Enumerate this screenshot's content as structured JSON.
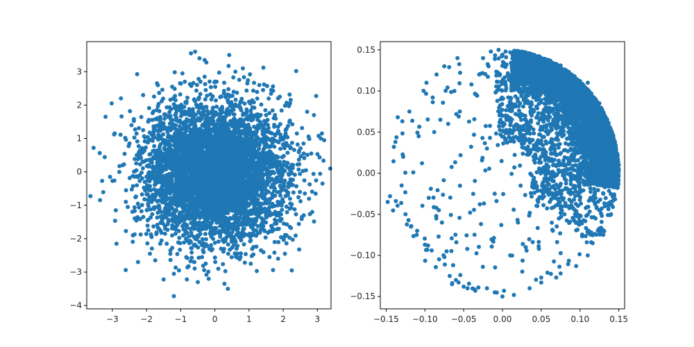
{
  "chart_data": [
    {
      "type": "scatter",
      "title": "",
      "xlabel": "",
      "ylabel": "",
      "xlim": [
        -3.75,
        3.4
      ],
      "ylim": [
        -4.1,
        3.9
      ],
      "xticks": [
        -3,
        -2,
        -1,
        0,
        1,
        2,
        3
      ],
      "yticks": [
        -4,
        -3,
        -2,
        -1,
        0,
        1,
        2,
        3
      ],
      "xtick_labels": [
        "−3",
        "−2",
        "−1",
        "0",
        "1",
        "2",
        "3"
      ],
      "ytick_labels": [
        "−4",
        "−3",
        "−2",
        "−1",
        "0",
        "1",
        "2",
        "3"
      ],
      "grid": false,
      "legend": "none",
      "color": "#1f77b4",
      "distribution": "2-D standard normal cloud centred at (0, 0), ~5000 points",
      "points": [
        [
          -3.55,
          0.72
        ],
        [
          -3.3,
          -0.27
        ],
        [
          -3.02,
          2.05
        ],
        [
          -2.95,
          1.12
        ],
        [
          -2.9,
          -1.15
        ],
        [
          -2.88,
          -2.15
        ],
        [
          -2.75,
          2.2
        ],
        [
          -3.2,
          1.65
        ],
        [
          -2.55,
          -1.05
        ],
        [
          -2.4,
          -1.9
        ],
        [
          -2.25,
          -2.7
        ],
        [
          -2.1,
          2.3
        ],
        [
          -1.9,
          -2.45
        ],
        [
          -1.5,
          -3.22
        ],
        [
          -1.25,
          2.55
        ],
        [
          -1.2,
          -3.05
        ],
        [
          -0.88,
          2.7
        ],
        [
          -0.82,
          -3.22
        ],
        [
          -0.7,
          3.55
        ],
        [
          -0.58,
          3.6
        ],
        [
          -0.45,
          3.4
        ],
        [
          -0.3,
          3.35
        ],
        [
          -0.5,
          -3.3
        ],
        [
          -0.18,
          -3.2
        ],
        [
          -1.2,
          -3.72
        ],
        [
          -0.95,
          2.95
        ],
        [
          -1.05,
          -2.95
        ],
        [
          0.1,
          -2.9
        ],
        [
          0.28,
          -3.35
        ],
        [
          0.38,
          -3.5
        ],
        [
          0.42,
          3.5
        ],
        [
          0.6,
          3.0
        ],
        [
          0.82,
          3.1
        ],
        [
          0.95,
          2.65
        ],
        [
          1.42,
          3.12
        ],
        [
          1.6,
          -2.55
        ],
        [
          1.85,
          -2.6
        ],
        [
          2.05,
          -2.45
        ],
        [
          2.25,
          -2.95
        ],
        [
          2.38,
          3.02
        ],
        [
          2.55,
          -1.35
        ],
        [
          2.7,
          1.8
        ],
        [
          2.9,
          1.7
        ],
        [
          3.1,
          1.0
        ],
        [
          3.2,
          0.95
        ],
        [
          2.95,
          -0.65
        ],
        [
          3.15,
          -0.35
        ],
        [
          2.85,
          -1.2
        ],
        [
          2.6,
          0.55
        ],
        [
          2.4,
          1.15
        ],
        [
          2.2,
          2.05
        ],
        [
          1.9,
          2.25
        ],
        [
          1.65,
          2.45
        ],
        [
          1.3,
          2.6
        ],
        [
          2.1,
          -1.9
        ],
        [
          1.75,
          -2.1
        ],
        [
          1.35,
          -2.35
        ],
        [
          1.05,
          -2.75
        ],
        [
          0.75,
          -2.55
        ],
        [
          -1.7,
          1.85
        ],
        [
          -2.1,
          1.25
        ],
        [
          -2.5,
          0.85
        ],
        [
          -2.7,
          0.2
        ],
        [
          -2.6,
          -0.55
        ],
        [
          -2.3,
          -1.4
        ],
        [
          -1.95,
          -1.75
        ],
        [
          -1.6,
          -2.15
        ],
        [
          -1.3,
          -2.35
        ],
        [
          -0.6,
          -2.7
        ],
        [
          0.05,
          2.7
        ],
        [
          -0.3,
          2.85
        ],
        [
          0.55,
          2.4
        ],
        [
          1.0,
          2.1
        ],
        [
          1.5,
          1.7
        ],
        [
          1.85,
          1.35
        ],
        [
          2.1,
          0.8
        ],
        [
          2.25,
          0.2
        ],
        [
          2.2,
          -0.4
        ],
        [
          2.0,
          -0.9
        ],
        [
          1.8,
          -1.3
        ],
        [
          1.45,
          -1.75
        ],
        [
          1.05,
          -2.05
        ],
        [
          0.55,
          -2.2
        ],
        [
          -0.1,
          -2.35
        ],
        [
          -0.7,
          -2.1
        ],
        [
          -1.15,
          -1.85
        ],
        [
          -1.55,
          -1.45
        ],
        [
          -1.85,
          -0.9
        ],
        [
          -2.05,
          -0.3
        ],
        [
          -2.0,
          0.35
        ],
        [
          -1.85,
          0.95
        ],
        [
          -1.55,
          1.45
        ],
        [
          -1.1,
          1.85
        ],
        [
          -0.6,
          2.15
        ]
      ]
    },
    {
      "type": "scatter",
      "title": "",
      "xlabel": "",
      "ylabel": "",
      "xlim": [
        -0.1575,
        0.1575
      ],
      "ylim": [
        -0.165,
        0.16
      ],
      "xticks": [
        -0.15,
        -0.1,
        -0.05,
        0.0,
        0.05,
        0.1,
        0.15
      ],
      "yticks": [
        -0.15,
        -0.1,
        -0.05,
        0.0,
        0.05,
        0.1,
        0.15
      ],
      "xtick_labels": [
        "−0.15",
        "−0.10",
        "−0.05",
        "0.00",
        "0.05",
        "0.10",
        "0.15"
      ],
      "ytick_labels": [
        "−0.15",
        "−0.10",
        "−0.05",
        "0.00",
        "0.05",
        "0.10",
        "0.15"
      ],
      "grid": false,
      "legend": "none",
      "color": "#1f77b4",
      "distribution": "points confined to a disk of radius 0.15, densely packed near the upper-right rim (angle about 0–1.6 rad, radius 0.11–0.15) and sparser toward the left and bottom",
      "points": [
        [
          -0.148,
          -0.035
        ],
        [
          -0.145,
          -0.028
        ],
        [
          -0.14,
          0.032
        ],
        [
          -0.138,
          0.038
        ],
        [
          -0.135,
          0.068
        ],
        [
          -0.13,
          -0.015
        ],
        [
          -0.128,
          0.02
        ],
        [
          -0.125,
          -0.05
        ],
        [
          -0.12,
          0.075
        ],
        [
          -0.118,
          -0.065
        ],
        [
          -0.115,
          0.001
        ],
        [
          -0.11,
          -0.07
        ],
        [
          -0.108,
          0.045
        ],
        [
          -0.1,
          -0.087
        ],
        [
          -0.098,
          0.11
        ],
        [
          -0.095,
          -0.03
        ],
        [
          -0.09,
          0.092
        ],
        [
          -0.088,
          0.05
        ],
        [
          -0.085,
          0.12
        ],
        [
          -0.082,
          -0.045
        ],
        [
          -0.08,
          0.065
        ],
        [
          -0.078,
          -0.06
        ],
        [
          -0.075,
          0.13
        ],
        [
          -0.072,
          -0.095
        ],
        [
          -0.07,
          0.06
        ],
        [
          -0.068,
          -0.125
        ],
        [
          -0.065,
          -0.135
        ],
        [
          -0.062,
          0.1
        ],
        [
          -0.06,
          -0.13
        ],
        [
          -0.058,
          0.14
        ],
        [
          -0.055,
          0.075
        ],
        [
          -0.05,
          -0.138
        ],
        [
          -0.045,
          -0.14
        ],
        [
          -0.04,
          0.108
        ],
        [
          -0.035,
          -0.143
        ],
        [
          -0.03,
          0.12
        ],
        [
          -0.025,
          0.14
        ],
        [
          -0.02,
          -0.14
        ],
        [
          -0.018,
          0.13
        ],
        [
          -0.015,
          0.148
        ],
        [
          -0.01,
          -0.145
        ],
        [
          -0.005,
          0.15
        ],
        [
          0.0,
          -0.15
        ],
        [
          0.002,
          -0.143
        ],
        [
          0.004,
          0.148
        ],
        [
          0.01,
          0.147
        ],
        [
          0.015,
          0.148
        ],
        [
          0.02,
          0.12
        ],
        [
          0.05,
          0.14
        ],
        [
          0.075,
          0.131
        ],
        [
          0.1,
          0.112
        ],
        [
          0.12,
          0.09
        ],
        [
          0.135,
          0.065
        ],
        [
          0.145,
          0.038
        ],
        [
          0.15,
          0.01
        ],
        [
          0.149,
          -0.01
        ],
        [
          0.14,
          -0.05
        ],
        [
          0.13,
          -0.075
        ],
        [
          0.11,
          -0.1
        ],
        [
          0.095,
          -0.113
        ],
        [
          0.075,
          -0.122
        ],
        [
          0.05,
          -0.133
        ],
        [
          0.05,
          -0.127
        ],
        [
          0.048,
          0.12
        ],
        [
          0.035,
          -0.14
        ],
        [
          0.03,
          0.065
        ],
        [
          0.04,
          0.02
        ],
        [
          0.06,
          -0.02
        ],
        [
          0.07,
          0.08
        ],
        [
          0.085,
          0.05
        ],
        [
          0.09,
          0.1
        ],
        [
          0.1,
          0.04
        ],
        [
          0.105,
          0.07
        ],
        [
          0.11,
          0.11
        ],
        [
          0.12,
          0.06
        ],
        [
          0.13,
          0.03
        ],
        [
          0.14,
          0.02
        ],
        [
          0.125,
          0.085
        ],
        [
          0.115,
          0.095
        ],
        [
          0.095,
          0.09
        ],
        [
          0.08,
          0.12
        ],
        [
          0.065,
          0.13
        ],
        [
          0.06,
          0.05
        ],
        [
          0.055,
          0.0
        ],
        [
          0.045,
          -0.04
        ],
        [
          0.02,
          -0.06
        ],
        [
          -0.01,
          -0.025
        ],
        [
          -0.02,
          0.03
        ],
        [
          0.0,
          0.07
        ],
        [
          0.01,
          -0.1
        ],
        [
          0.03,
          -0.09
        ],
        [
          0.065,
          -0.07
        ],
        [
          0.08,
          -0.05
        ],
        [
          0.1,
          -0.02
        ],
        [
          0.12,
          -0.03
        ],
        [
          0.135,
          0.0
        ],
        [
          0.143,
          0.045
        ],
        [
          0.138,
          0.055
        ]
      ]
    }
  ]
}
